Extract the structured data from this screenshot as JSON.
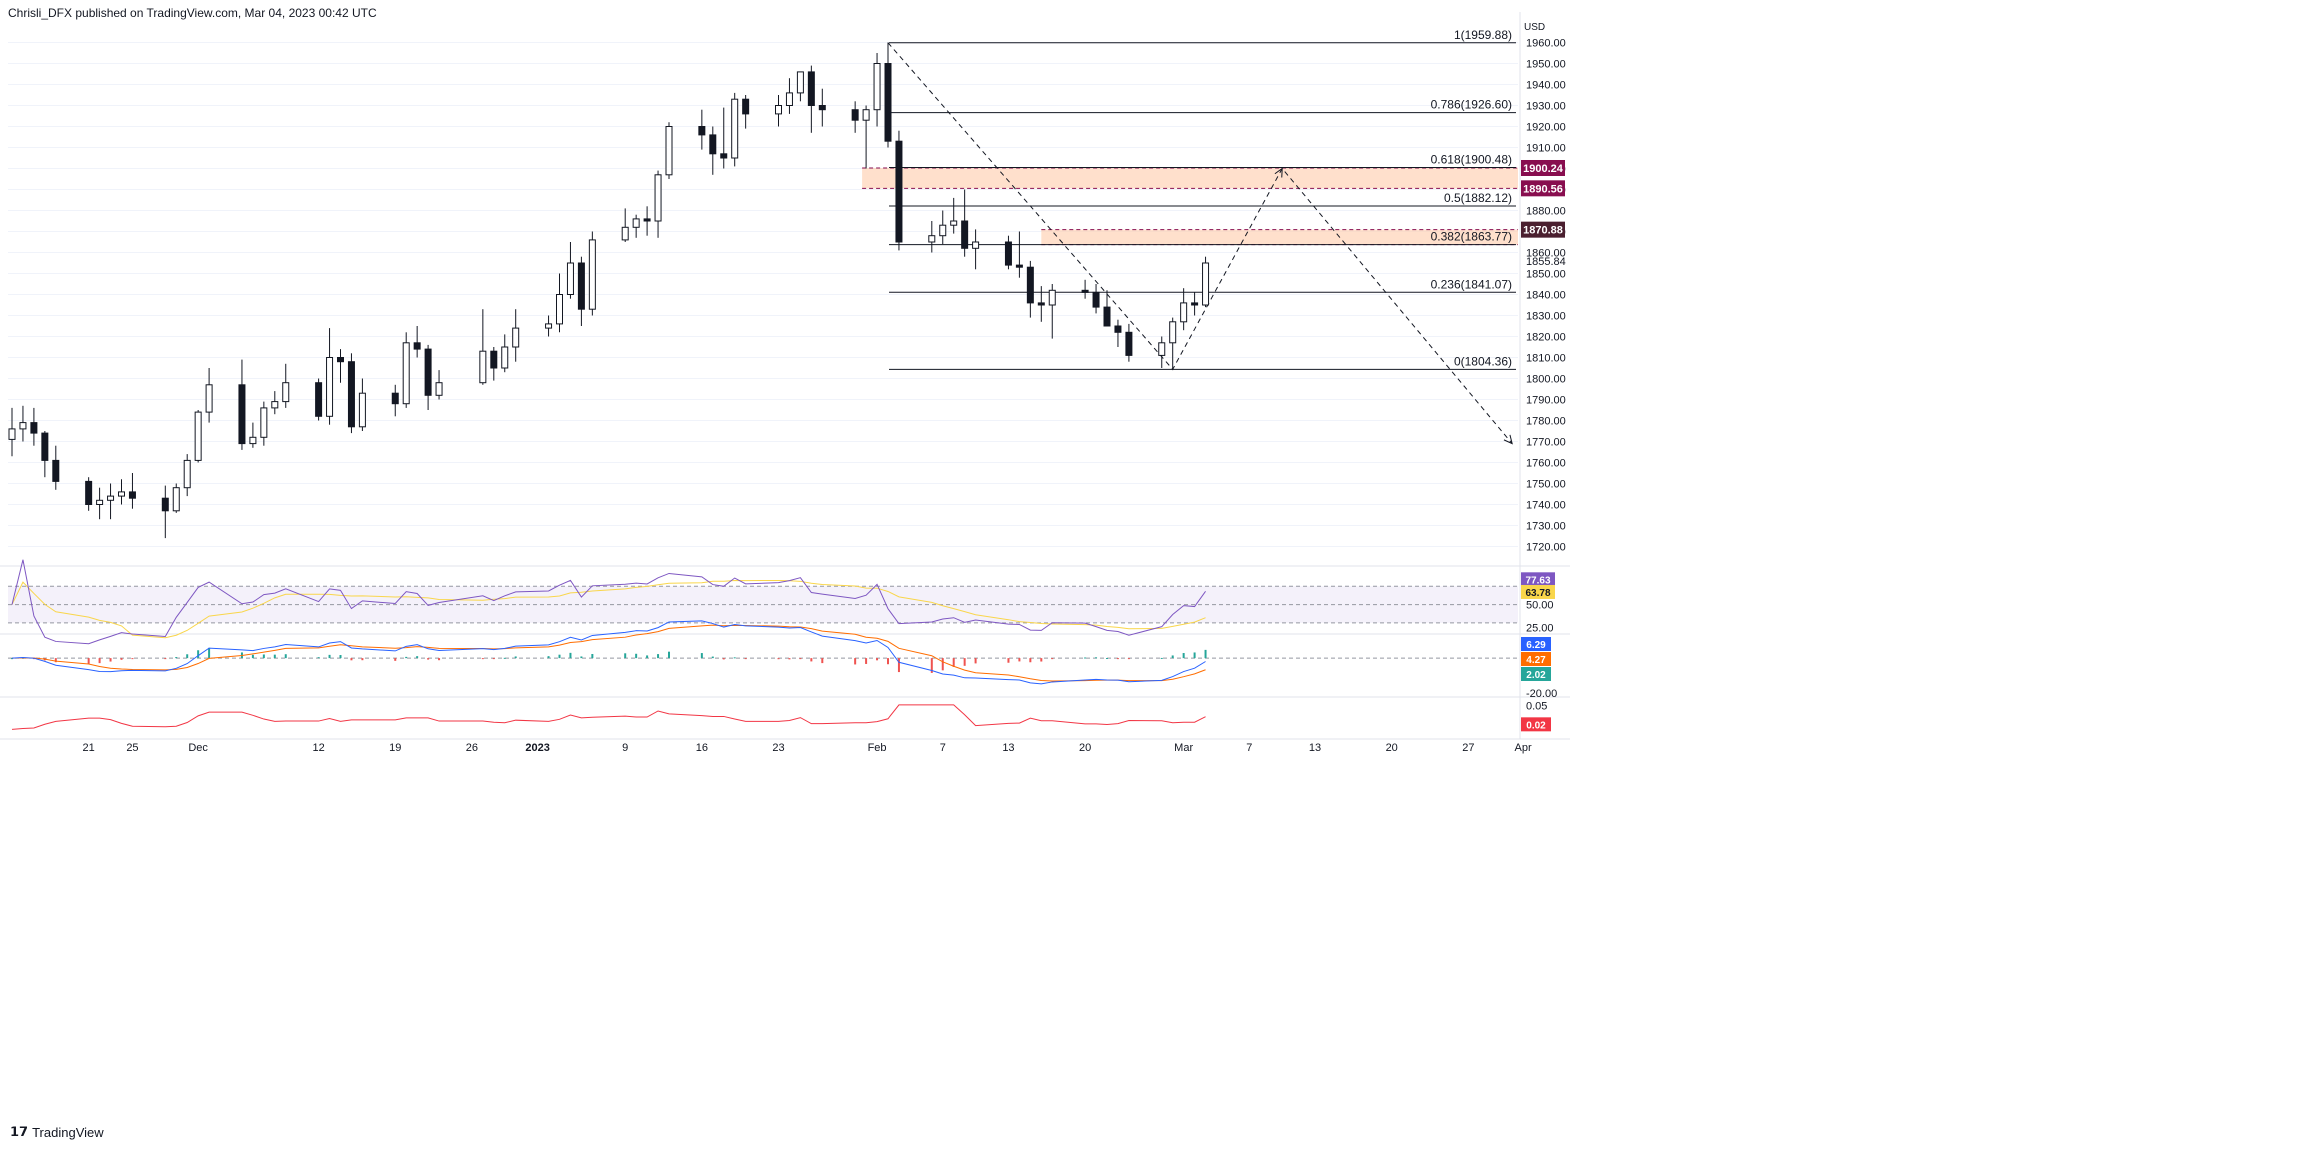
{
  "header": {
    "published_text": "Chrisli_DFX published on TradingView.com, Mar 04, 2023 00:42 UTC"
  },
  "footer": {
    "logo_text": "TradingView"
  },
  "colors": {
    "up": "#131722",
    "grid": "#f0f3fa",
    "fib": "#131722",
    "zone": "#ffccaa",
    "badge_red": "#880e4f",
    "badge_dark": "#4a1f2f",
    "rsi": "#7e57c2",
    "rsi_ma": "#f9d64b",
    "rsi_band": "#ede7f6",
    "macd": "#2962ff",
    "signal": "#ff6d00",
    "hist_pos": "#26a69a",
    "hist_neg": "#ef5350",
    "ind3": "#f23645"
  },
  "chart_data": [
    {
      "type": "candlestick",
      "name": "XAU/USD daily",
      "y_axis_label": "USD",
      "ylim": [
        1715,
        1965
      ],
      "y_ticks": [
        "1720.00",
        "1730.00",
        "1740.00",
        "1750.00",
        "1760.00",
        "1770.00",
        "1780.00",
        "1790.00",
        "1800.00",
        "1810.00",
        "1820.00",
        "1830.00",
        "1840.00",
        "1850.00",
        "1860.00",
        "1870.00",
        "1880.00",
        "1890.00",
        "1900.00",
        "1910.00",
        "1920.00",
        "1930.00",
        "1940.00",
        "1950.00",
        "1960.00"
      ],
      "extra_tick": "1855.84",
      "x_ticks": [
        "21",
        "25",
        "Dec",
        "12",
        "19",
        "26",
        "2023",
        "9",
        "16",
        "23",
        "Feb",
        "7",
        "13",
        "20",
        "Mar",
        "7",
        "13",
        "20",
        "27",
        "Apr"
      ],
      "x_ticks_bold": [
        "2023"
      ],
      "fib_levels": [
        {
          "label": "1(1959.88)",
          "value": 1959.88
        },
        {
          "label": "0.786(1926.60)",
          "value": 1926.6
        },
        {
          "label": "0.618(1900.48)",
          "value": 1900.48
        },
        {
          "label": "0.5(1882.12)",
          "value": 1882.12
        },
        {
          "label": "0.382(1863.77)",
          "value": 1863.77
        },
        {
          "label": "0.236(1841.07)",
          "value": 1841.07
        },
        {
          "label": "0(1804.36)",
          "value": 1804.36
        }
      ],
      "zones": [
        {
          "from": 1890.56,
          "to": 1900.24
        },
        {
          "from": 1863.77,
          "to": 1870.88
        }
      ],
      "price_badges": [
        {
          "label": "1900.24",
          "value": 1900.24,
          "style": "red"
        },
        {
          "label": "1890.56",
          "value": 1890.56,
          "style": "red"
        },
        {
          "label": "1870.88",
          "value": 1870.88,
          "style": "dark"
        }
      ],
      "projection": {
        "path": [
          {
            "date": "2023-02-02",
            "price": 1959.88
          },
          {
            "date": "2023-02-28",
            "price": 1804.36
          },
          {
            "date": "2023-03-10",
            "price": 1900.0
          },
          {
            "date": "2023-03-31",
            "price": 1769.0
          }
        ]
      },
      "candles": [
        {
          "date": "2022-11-14",
          "o": 1771,
          "h": 1786,
          "l": 1763,
          "c": 1776
        },
        {
          "date": "2022-11-15",
          "o": 1776,
          "h": 1787,
          "l": 1770,
          "c": 1779
        },
        {
          "date": "2022-11-16",
          "o": 1779,
          "h": 1786,
          "l": 1768,
          "c": 1774
        },
        {
          "date": "2022-11-17",
          "o": 1774,
          "h": 1775,
          "l": 1753,
          "c": 1761
        },
        {
          "date": "2022-11-18",
          "o": 1761,
          "h": 1768,
          "l": 1747,
          "c": 1751
        },
        {
          "date": "2022-11-21",
          "o": 1751,
          "h": 1753,
          "l": 1737,
          "c": 1740
        },
        {
          "date": "2022-11-22",
          "o": 1740,
          "h": 1748,
          "l": 1733,
          "c": 1742
        },
        {
          "date": "2022-11-23",
          "o": 1742,
          "h": 1750,
          "l": 1733,
          "c": 1744
        },
        {
          "date": "2022-11-24",
          "o": 1744,
          "h": 1752,
          "l": 1740,
          "c": 1746
        },
        {
          "date": "2022-11-25",
          "o": 1746,
          "h": 1755,
          "l": 1738,
          "c": 1743
        },
        {
          "date": "2022-11-28",
          "o": 1743,
          "h": 1749,
          "l": 1724,
          "c": 1737
        },
        {
          "date": "2022-11-29",
          "o": 1737,
          "h": 1750,
          "l": 1736,
          "c": 1748
        },
        {
          "date": "2022-11-30",
          "o": 1748,
          "h": 1764,
          "l": 1744,
          "c": 1761
        },
        {
          "date": "2022-12-01",
          "o": 1761,
          "h": 1785,
          "l": 1760,
          "c": 1784
        },
        {
          "date": "2022-12-02",
          "o": 1784,
          "h": 1805,
          "l": 1779,
          "c": 1797
        },
        {
          "date": "2022-12-05",
          "o": 1797,
          "h": 1809,
          "l": 1766,
          "c": 1769
        },
        {
          "date": "2022-12-06",
          "o": 1769,
          "h": 1779,
          "l": 1767,
          "c": 1772
        },
        {
          "date": "2022-12-07",
          "o": 1772,
          "h": 1789,
          "l": 1768,
          "c": 1786
        },
        {
          "date": "2022-12-08",
          "o": 1786,
          "h": 1794,
          "l": 1783,
          "c": 1789
        },
        {
          "date": "2022-12-09",
          "o": 1789,
          "h": 1807,
          "l": 1786,
          "c": 1798
        },
        {
          "date": "2022-12-12",
          "o": 1798,
          "h": 1800,
          "l": 1780,
          "c": 1782
        },
        {
          "date": "2022-12-13",
          "o": 1782,
          "h": 1824,
          "l": 1778,
          "c": 1810
        },
        {
          "date": "2022-12-14",
          "o": 1810,
          "h": 1814,
          "l": 1798,
          "c": 1808
        },
        {
          "date": "2022-12-15",
          "o": 1808,
          "h": 1812,
          "l": 1774,
          "c": 1777
        },
        {
          "date": "2022-12-16",
          "o": 1777,
          "h": 1800,
          "l": 1775,
          "c": 1793
        },
        {
          "date": "2022-12-19",
          "o": 1793,
          "h": 1797,
          "l": 1782,
          "c": 1788
        },
        {
          "date": "2022-12-20",
          "o": 1788,
          "h": 1822,
          "l": 1786,
          "c": 1817
        },
        {
          "date": "2022-12-21",
          "o": 1817,
          "h": 1825,
          "l": 1810,
          "c": 1814
        },
        {
          "date": "2022-12-22",
          "o": 1814,
          "h": 1816,
          "l": 1785,
          "c": 1792
        },
        {
          "date": "2022-12-23",
          "o": 1792,
          "h": 1804,
          "l": 1790,
          "c": 1798
        },
        {
          "date": "2022-12-27",
          "o": 1798,
          "h": 1833,
          "l": 1797,
          "c": 1813
        },
        {
          "date": "2022-12-28",
          "o": 1813,
          "h": 1815,
          "l": 1799,
          "c": 1805
        },
        {
          "date": "2022-12-29",
          "o": 1805,
          "h": 1821,
          "l": 1803,
          "c": 1815
        },
        {
          "date": "2022-12-30",
          "o": 1815,
          "h": 1833,
          "l": 1808,
          "c": 1824
        },
        {
          "date": "2023-01-02",
          "o": 1824,
          "h": 1830,
          "l": 1820,
          "c": 1826
        },
        {
          "date": "2023-01-03",
          "o": 1826,
          "h": 1850,
          "l": 1822,
          "c": 1840
        },
        {
          "date": "2023-01-04",
          "o": 1840,
          "h": 1865,
          "l": 1838,
          "c": 1855
        },
        {
          "date": "2023-01-05",
          "o": 1855,
          "h": 1858,
          "l": 1825,
          "c": 1833
        },
        {
          "date": "2023-01-06",
          "o": 1833,
          "h": 1870,
          "l": 1830,
          "c": 1866
        },
        {
          "date": "2023-01-09",
          "o": 1866,
          "h": 1881,
          "l": 1865,
          "c": 1872
        },
        {
          "date": "2023-01-10",
          "o": 1872,
          "h": 1878,
          "l": 1867,
          "c": 1876
        },
        {
          "date": "2023-01-11",
          "o": 1876,
          "h": 1882,
          "l": 1868,
          "c": 1875
        },
        {
          "date": "2023-01-12",
          "o": 1875,
          "h": 1899,
          "l": 1867,
          "c": 1897
        },
        {
          "date": "2023-01-13",
          "o": 1897,
          "h": 1922,
          "l": 1895,
          "c": 1920
        },
        {
          "date": "2023-01-16",
          "o": 1920,
          "h": 1928,
          "l": 1909,
          "c": 1916
        },
        {
          "date": "2023-01-17",
          "o": 1916,
          "h": 1920,
          "l": 1897,
          "c": 1907
        },
        {
          "date": "2023-01-18",
          "o": 1907,
          "h": 1929,
          "l": 1900,
          "c": 1905
        },
        {
          "date": "2023-01-19",
          "o": 1905,
          "h": 1936,
          "l": 1901,
          "c": 1933
        },
        {
          "date": "2023-01-20",
          "o": 1933,
          "h": 1935,
          "l": 1919,
          "c": 1926
        },
        {
          "date": "2023-01-23",
          "o": 1926,
          "h": 1935,
          "l": 1920,
          "c": 1930
        },
        {
          "date": "2023-01-24",
          "o": 1930,
          "h": 1943,
          "l": 1926,
          "c": 1936
        },
        {
          "date": "2023-01-25",
          "o": 1936,
          "h": 1946,
          "l": 1932,
          "c": 1946
        },
        {
          "date": "2023-01-26",
          "o": 1946,
          "h": 1949,
          "l": 1917,
          "c": 1930
        },
        {
          "date": "2023-01-27",
          "o": 1930,
          "h": 1938,
          "l": 1920,
          "c": 1928
        },
        {
          "date": "2023-01-30",
          "o": 1928,
          "h": 1932,
          "l": 1917,
          "c": 1923
        },
        {
          "date": "2023-01-31",
          "o": 1923,
          "h": 1930,
          "l": 1900,
          "c": 1928
        },
        {
          "date": "2023-02-01",
          "o": 1928,
          "h": 1955,
          "l": 1920,
          "c": 1950
        },
        {
          "date": "2023-02-02",
          "o": 1950,
          "h": 1960,
          "l": 1910,
          "c": 1913
        },
        {
          "date": "2023-02-03",
          "o": 1913,
          "h": 1918,
          "l": 1861,
          "c": 1865
        },
        {
          "date": "2023-02-06",
          "o": 1865,
          "h": 1875,
          "l": 1860,
          "c": 1868
        },
        {
          "date": "2023-02-07",
          "o": 1868,
          "h": 1880,
          "l": 1864,
          "c": 1873
        },
        {
          "date": "2023-02-08",
          "o": 1873,
          "h": 1886,
          "l": 1869,
          "c": 1875
        },
        {
          "date": "2023-02-09",
          "o": 1875,
          "h": 1890,
          "l": 1858,
          "c": 1862
        },
        {
          "date": "2023-02-10",
          "o": 1862,
          "h": 1871,
          "l": 1852,
          "c": 1865
        },
        {
          "date": "2023-02-13",
          "o": 1865,
          "h": 1868,
          "l": 1852,
          "c": 1854
        },
        {
          "date": "2023-02-14",
          "o": 1854,
          "h": 1870,
          "l": 1848,
          "c": 1853
        },
        {
          "date": "2023-02-15",
          "o": 1853,
          "h": 1856,
          "l": 1829,
          "c": 1836
        },
        {
          "date": "2023-02-16",
          "o": 1836,
          "h": 1844,
          "l": 1827,
          "c": 1835
        },
        {
          "date": "2023-02-17",
          "o": 1835,
          "h": 1845,
          "l": 1819,
          "c": 1842
        },
        {
          "date": "2023-02-20",
          "o": 1842,
          "h": 1847,
          "l": 1838,
          "c": 1841
        },
        {
          "date": "2023-02-21",
          "o": 1841,
          "h": 1845,
          "l": 1831,
          "c": 1834
        },
        {
          "date": "2023-02-22",
          "o": 1834,
          "h": 1842,
          "l": 1826,
          "c": 1825
        },
        {
          "date": "2023-02-23",
          "o": 1825,
          "h": 1828,
          "l": 1815,
          "c": 1822
        },
        {
          "date": "2023-02-24",
          "o": 1822,
          "h": 1826,
          "l": 1808,
          "c": 1811
        },
        {
          "date": "2023-02-27",
          "o": 1811,
          "h": 1820,
          "l": 1805,
          "c": 1817
        },
        {
          "date": "2023-02-28",
          "o": 1817,
          "h": 1829,
          "l": 1804,
          "c": 1827
        },
        {
          "date": "2023-03-01",
          "o": 1827,
          "h": 1843,
          "l": 1823,
          "c": 1836
        },
        {
          "date": "2023-03-02",
          "o": 1836,
          "h": 1841,
          "l": 1830,
          "c": 1835
        },
        {
          "date": "2023-03-03",
          "o": 1835,
          "h": 1858,
          "l": 1834,
          "c": 1855
        }
      ]
    },
    {
      "type": "line",
      "name": "RSI",
      "ylim": [
        20,
        90
      ],
      "y_ticks": [
        "25.00",
        "50.00"
      ],
      "band": [
        30,
        70
      ],
      "mid": 50,
      "last_values": [
        {
          "label": "77.63",
          "value": 77.63,
          "color": "rsi"
        },
        {
          "label": "63.78",
          "value": 63.78,
          "color": "rsi_ma"
        }
      ]
    },
    {
      "type": "line",
      "name": "MACD",
      "ylim": [
        -25,
        15
      ],
      "y_ticks": [
        "-20.00"
      ],
      "last_values": [
        {
          "label": "6.29",
          "value": 6.29,
          "color": "macd"
        },
        {
          "label": "4.27",
          "value": 4.27,
          "color": "signal"
        },
        {
          "label": "2.02",
          "value": 2.02,
          "color": "hist_pos"
        }
      ]
    },
    {
      "type": "line",
      "name": "Indicator",
      "ylim": [
        0,
        0.06
      ],
      "y_ticks": [
        "0.05"
      ],
      "last_values": [
        {
          "label": "0.02",
          "value": 0.02,
          "color": "ind3"
        }
      ]
    }
  ]
}
